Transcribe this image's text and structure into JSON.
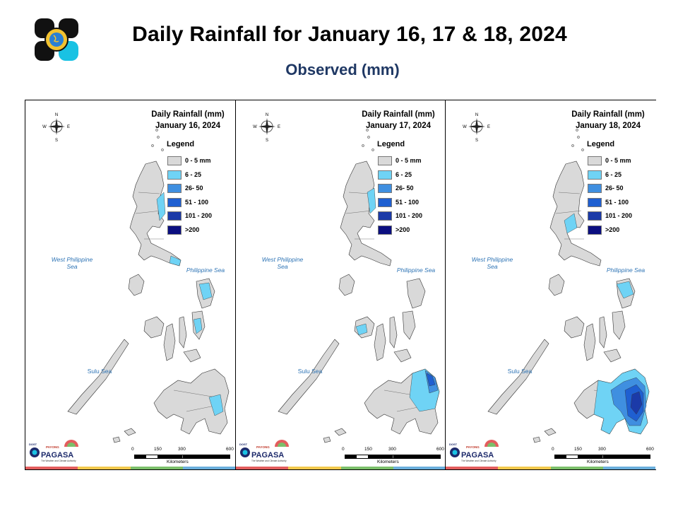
{
  "header": {
    "title": "Daily Rainfall for January 16, 17 & 18, 2024",
    "subtitle": "Observed (mm)"
  },
  "legend": {
    "heading": "Legend",
    "items": [
      {
        "label": "0 - 5 mm",
        "color": "#d9d9d9"
      },
      {
        "label": "6 - 25",
        "color": "#6fd3f5"
      },
      {
        "label": "26- 50",
        "color": "#3f8fe0"
      },
      {
        "label": "51 - 100",
        "color": "#1f5fd1"
      },
      {
        "label": "101 - 200",
        "color": "#1b3aa8"
      },
      {
        "label": ">200",
        "color": "#0b0f80"
      }
    ]
  },
  "panels": [
    {
      "heading": "Daily Rainfall (mm)",
      "date": "January 16, 2024",
      "intensity": 1
    },
    {
      "heading": "Daily Rainfall (mm)",
      "date": "January 17, 2024",
      "intensity": 2
    },
    {
      "heading": "Daily Rainfall (mm)",
      "date": "January 18, 2024",
      "intensity": 3
    }
  ],
  "seas": {
    "west": "West Philippine Sea",
    "east": "Philippine Sea",
    "sulu": "Sulu Sea"
  },
  "compass": {
    "n": "N",
    "s": "S",
    "e": "E",
    "w": "W"
  },
  "scale": {
    "ticks": [
      "0",
      "150",
      "300",
      "600"
    ],
    "unit": "Kilometers"
  },
  "branding": {
    "dost": "DOST",
    "payong": "PAYONG",
    "pagasa": "PAGASA",
    "tagline": "The Weather and Climate Authority"
  },
  "strip_colors": [
    "#e35d5d",
    "#f2c94c",
    "#7bbf6a",
    "#6aaedc"
  ]
}
